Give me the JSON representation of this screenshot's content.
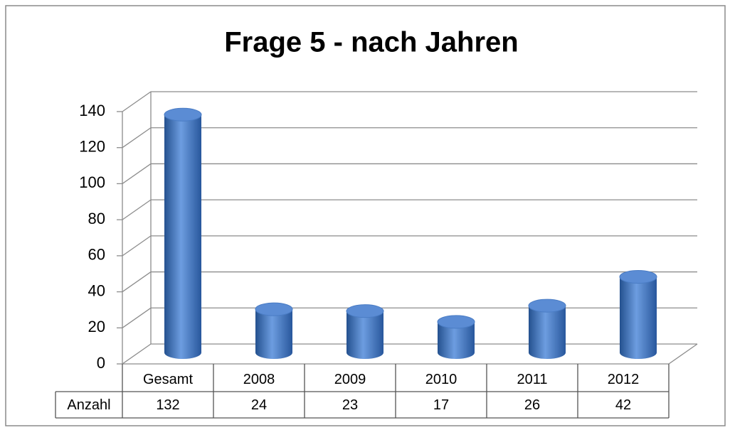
{
  "chart_data": {
    "type": "bar",
    "title": "Frage 5 - nach Jahren",
    "categories": [
      "Gesamt",
      "2008",
      "2009",
      "2010",
      "2011",
      "2012"
    ],
    "series": [
      {
        "name": "Anzahl",
        "color": "#4a7cc4",
        "values": [
          132,
          24,
          23,
          17,
          26,
          42
        ]
      }
    ],
    "ylim": [
      0,
      140
    ],
    "yticks": [
      0,
      20,
      40,
      60,
      80,
      100,
      120,
      140
    ],
    "grid": true
  }
}
